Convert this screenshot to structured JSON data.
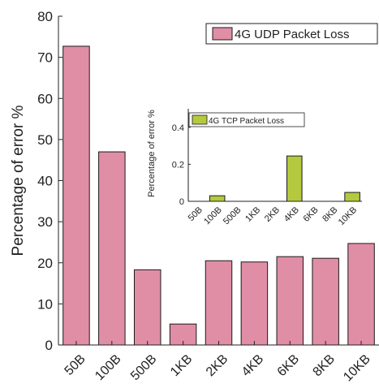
{
  "chart_data": [
    {
      "type": "bar",
      "categories": [
        "50B",
        "100B",
        "500B",
        "1KB",
        "2KB",
        "4KB",
        "6KB",
        "8KB",
        "10KB"
      ],
      "series": [
        {
          "name": "4G UDP Packet Loss",
          "values": [
            72.7,
            47.0,
            18.3,
            5.1,
            20.5,
            20.2,
            21.5,
            21.1,
            24.7
          ],
          "color": "#e08ea6"
        }
      ],
      "xlabel": "",
      "ylabel": "Percentage of error %",
      "ylim": [
        0,
        80
      ],
      "yticks": [
        0,
        10,
        20,
        30,
        40,
        50,
        60,
        70,
        80
      ],
      "legend": "top-right",
      "grid": false
    },
    {
      "type": "bar",
      "categories": [
        "50B",
        "100B",
        "500B",
        "1KB",
        "2KB",
        "4KB",
        "6KB",
        "8KB",
        "10KB"
      ],
      "series": [
        {
          "name": "4G TCP Packet Loss",
          "values": [
            0,
            0.03,
            0,
            0,
            0,
            0.245,
            0,
            0,
            0.048
          ],
          "color": "#b4c93e"
        }
      ],
      "xlabel": "",
      "ylabel": "Percentage of error %",
      "ylim": [
        0,
        0.5
      ],
      "yticks": [
        0,
        0.2,
        0.4
      ],
      "legend": "top-left",
      "grid": false
    }
  ]
}
